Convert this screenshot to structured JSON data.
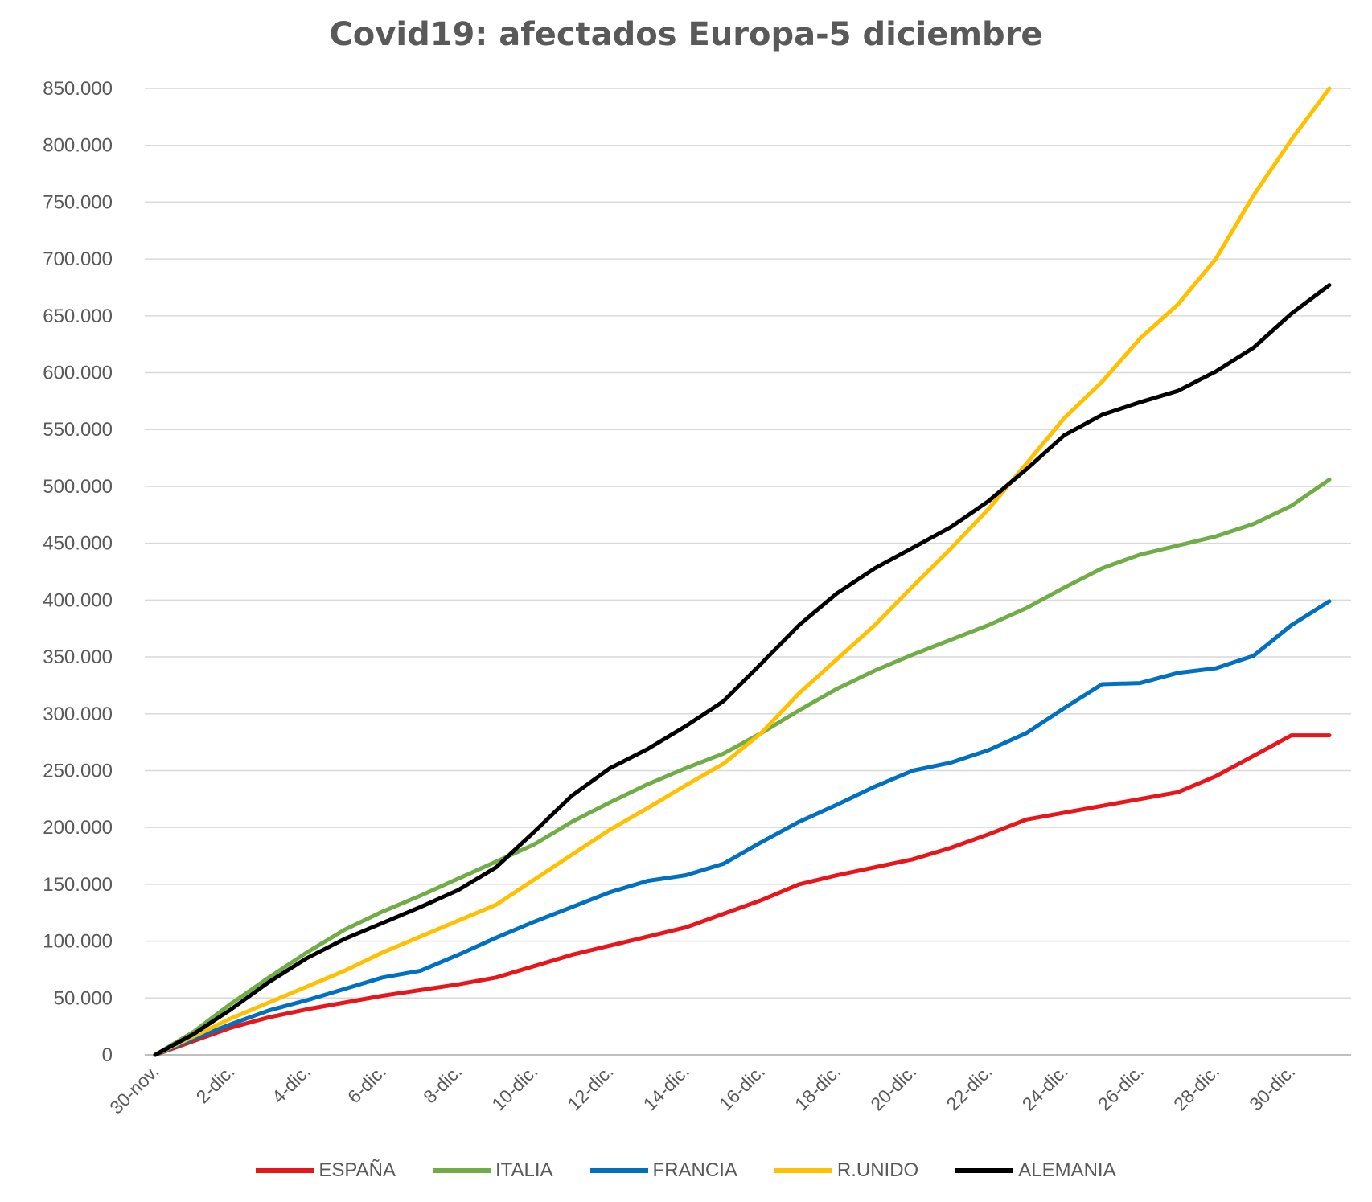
{
  "chart_data": {
    "type": "line",
    "title": "Covid19: afectados Europa-5 diciembre",
    "xlabel": "",
    "ylabel": "",
    "ylim": [
      0,
      850000
    ],
    "yticks": [
      0,
      50000,
      100000,
      150000,
      200000,
      250000,
      300000,
      350000,
      400000,
      450000,
      500000,
      550000,
      600000,
      650000,
      700000,
      750000,
      800000,
      850000
    ],
    "ytick_labels": [
      "0",
      "50.000",
      "100.000",
      "150.000",
      "200.000",
      "250.000",
      "300.000",
      "350.000",
      "400.000",
      "450.000",
      "500.000",
      "550.000",
      "600.000",
      "650.000",
      "700.000",
      "750.000",
      "800.000",
      "850.000"
    ],
    "categories": [
      "30-nov.",
      "1-dic.",
      "2-dic.",
      "3-dic.",
      "4-dic.",
      "5-dic.",
      "6-dic.",
      "7-dic.",
      "8-dic.",
      "9-dic.",
      "10-dic.",
      "11-dic.",
      "12-dic.",
      "13-dic.",
      "14-dic.",
      "15-dic.",
      "16-dic.",
      "17-dic.",
      "18-dic.",
      "19-dic.",
      "20-dic.",
      "21-dic.",
      "22-dic.",
      "23-dic.",
      "24-dic.",
      "25-dic.",
      "26-dic.",
      "27-dic.",
      "28-dic.",
      "29-dic.",
      "30-dic.",
      "31-dic."
    ],
    "xtick_labels": [
      "30-nov.",
      "2-dic.",
      "4-dic.",
      "6-dic.",
      "8-dic.",
      "10-dic.",
      "12-dic.",
      "14-dic.",
      "16-dic.",
      "18-dic.",
      "20-dic.",
      "22-dic.",
      "24-dic.",
      "26-dic.",
      "28-dic.",
      "30-dic."
    ],
    "grid": true,
    "legend_position": "bottom",
    "series": [
      {
        "name": "ESPAÑA",
        "color": "#e8161a",
        "values": [
          0,
          12000,
          24000,
          33000,
          40000,
          46000,
          52000,
          57000,
          62000,
          68000,
          78000,
          88000,
          96000,
          104000,
          112000,
          124000,
          136000,
          150000,
          158000,
          165000,
          172000,
          182000,
          194000,
          207000,
          213000,
          219000,
          225000,
          231000,
          245000,
          263000,
          281000,
          281000
        ]
      },
      {
        "name": "ITALIA",
        "color": "#70ad47",
        "values": [
          0,
          20000,
          45000,
          68000,
          90000,
          110000,
          126000,
          140000,
          155000,
          170000,
          185000,
          205000,
          222000,
          238000,
          252000,
          265000,
          283000,
          303000,
          322000,
          338000,
          352000,
          365000,
          378000,
          393000,
          411000,
          428000,
          440000,
          448000,
          456000,
          467000,
          483000,
          506000
        ]
      },
      {
        "name": "FRANCIA",
        "color": "#0070c0",
        "values": [
          0,
          14000,
          27000,
          39000,
          48000,
          58000,
          68000,
          74000,
          88000,
          103000,
          117000,
          130000,
          143000,
          153000,
          158000,
          168000,
          187000,
          205000,
          220000,
          236000,
          250000,
          257000,
          268000,
          283000,
          305000,
          326000,
          327000,
          336000,
          340000,
          351000,
          378000,
          399000
        ]
      },
      {
        "name": "R.UNIDO",
        "color": "#ffc000",
        "values": [
          0,
          16000,
          32000,
          46000,
          60000,
          74000,
          90000,
          104000,
          118000,
          132000,
          154000,
          176000,
          198000,
          217000,
          237000,
          256000,
          283000,
          318000,
          348000,
          378000,
          412000,
          445000,
          480000,
          520000,
          560000,
          592000,
          630000,
          660000,
          700000,
          756000,
          805000,
          856000
        ]
      },
      {
        "name": "ALEMANIA",
        "color": "#000000",
        "values": [
          0,
          18000,
          40000,
          64000,
          85000,
          102000,
          116000,
          130000,
          145000,
          165000,
          196000,
          228000,
          252000,
          269000,
          289000,
          311000,
          344000,
          378000,
          406000,
          428000,
          446000,
          464000,
          487000,
          515000,
          545000,
          563000,
          574000,
          584000,
          601000,
          622000,
          652000,
          677000
        ]
      }
    ]
  }
}
